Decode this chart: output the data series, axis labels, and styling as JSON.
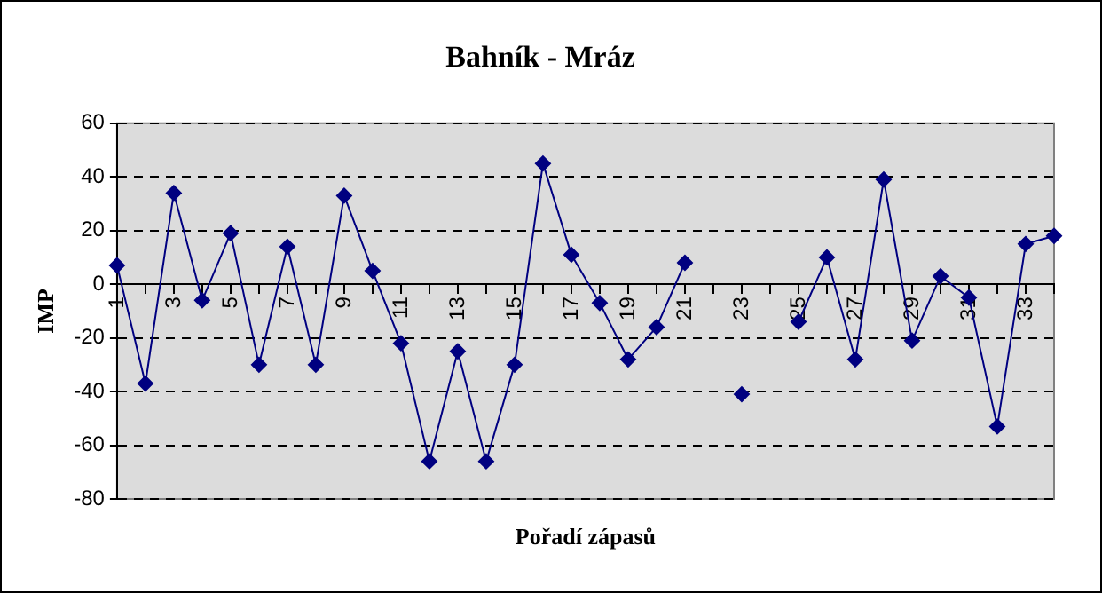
{
  "chart_data": {
    "type": "line",
    "title": "Bahník - Mráz",
    "xlabel": "Pořadí zápasů",
    "ylabel": "IMP",
    "categories": [
      "1",
      null,
      "3",
      null,
      "5",
      null,
      "7",
      null,
      "9",
      null,
      "11",
      null,
      "13",
      null,
      "15",
      null,
      "17",
      null,
      "19",
      null,
      "21",
      null,
      "23",
      null,
      "25",
      null,
      "27",
      null,
      "29",
      null,
      "31",
      null,
      "33",
      null
    ],
    "series": [
      {
        "color": "#000080",
        "values": [
          7,
          -37,
          34,
          -6,
          19,
          -30,
          14,
          -30,
          33,
          5,
          -22,
          -66,
          -25,
          -66,
          -30,
          45,
          11,
          -7,
          -28,
          -16,
          8,
          null,
          -41,
          null,
          -14,
          10,
          -28,
          39,
          -21,
          3,
          -5,
          -53,
          15,
          18
        ]
      }
    ],
    "ylim": [
      -80,
      60
    ],
    "yticks": [
      -80,
      -60,
      -40,
      -20,
      0,
      20,
      40,
      60
    ],
    "grid": "y",
    "legend": false,
    "marker": "diamond",
    "line_style": "solid"
  }
}
